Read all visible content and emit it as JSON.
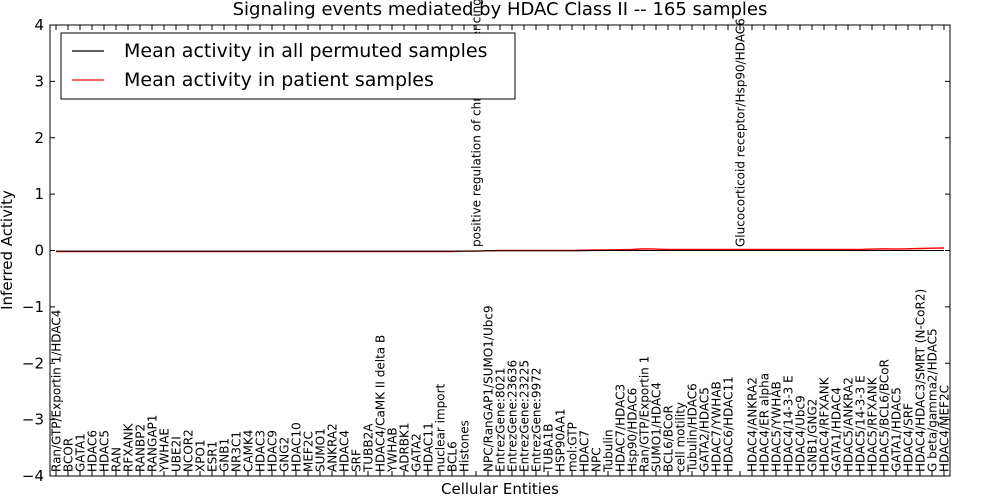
{
  "chart_data": {
    "type": "line",
    "title": "Signaling events mediated by HDAC Class II -- 165 samples",
    "xlabel": "Cellular Entities",
    "ylabel": "Inferred Activity",
    "ylim": [
      -4,
      4
    ],
    "yticks": [
      -4,
      -3,
      -2,
      -1,
      0,
      1,
      2,
      3,
      4
    ],
    "ytick_labels": [
      "−4",
      "−3",
      "−2",
      "−1",
      "0",
      "1",
      "2",
      "3",
      "4"
    ],
    "grid": false,
    "legend_position": "top-left",
    "categories": [
      "Ran/GTP/Exportin 1/HDAC4",
      "BCOR",
      "GATA1",
      "HDAC6",
      "HDAC5",
      "RAN",
      "RFXANK",
      "RANBP2",
      "RANGAP1",
      "YWHAE",
      "UBE2I",
      "NCOR2",
      "XPO1",
      "ESR1",
      "GNB1",
      "NR3C1",
      "CAMK4",
      "HDAC3",
      "HDAC9",
      "GNG2",
      "HDAC10",
      "MEF2C",
      "SUMO1",
      "ANKRA2",
      "HDAC4",
      "SRF",
      "TUBB2A",
      "HDAC4/CaMK II delta B",
      "YWHAB",
      "ADRBK1",
      "GATA2",
      "HDAC11",
      "nuclear import",
      "BCL6",
      "Histones",
      "positive regulation of chromatin silencing",
      "NPC/RanGAP1/SUMO1/Ubc9",
      "EntrezGene:8021",
      "EntrezGene:23636",
      "EntrezGene:23225",
      "EntrezGene:9972",
      "TUBA1B",
      "HSP90AA1",
      "mol:GTP",
      "HDAC7",
      "NPC",
      "Tubulin",
      "HDAC7/HDAC3",
      "Hsp90/HDAC6",
      "Ran/GTP/Exportin 1",
      "SUMO1/HDAC4",
      "BCL6/BCoR",
      "cell motility",
      "Tubulin/HDAC6",
      "GATA2/HDAC5",
      "HDAC7/YWHAB",
      "HDAC6/HDAC11",
      "Glucocorticoid receptor/Hsp90/HDAC6",
      "HDAC4/ANKRA2",
      "HDAC4/ER alpha",
      "HDAC5/YWHAB",
      "HDAC4/14-3-3 E",
      "HDAC4/Ubc9",
      "GNB1/GNG2",
      "HDAC4/RFXANK",
      "GATA1/HDAC4",
      "HDAC5/ANKRA2",
      "HDAC5/14-3-3 E",
      "HDAC5/RFXANK",
      "HDAC5/BCL6/BCoR",
      "GATA1/HDAC5",
      "HDAC4/SRF",
      "HDAC4/HDAC3/SMRT (N-CoR2)",
      "G beta/gamma2/HDAC5",
      "HDAC4/MEF2C"
    ],
    "series": [
      {
        "name": "Mean activity in all permuted samples",
        "color": "#000000",
        "values": [
          -0.01,
          -0.01,
          -0.01,
          -0.01,
          -0.01,
          -0.01,
          -0.01,
          -0.01,
          -0.01,
          -0.01,
          -0.01,
          -0.01,
          -0.01,
          -0.01,
          -0.01,
          -0.01,
          -0.01,
          -0.01,
          -0.01,
          -0.01,
          -0.01,
          -0.01,
          -0.01,
          -0.01,
          -0.01,
          -0.01,
          -0.01,
          -0.01,
          -0.01,
          -0.01,
          -0.01,
          -0.01,
          -0.01,
          -0.01,
          -0.01,
          -0.01,
          -0.005,
          -0.005,
          -0.005,
          -0.005,
          -0.005,
          -0.005,
          -0.005,
          -0.005,
          -0.005,
          0.0,
          0.0,
          0.0,
          0.0,
          0.0,
          0.0,
          0.0,
          0.0,
          0.0,
          0.0,
          0.0,
          0.0,
          0.0,
          0.0,
          0.0,
          0.0,
          0.0,
          0.0,
          0.0,
          0.0,
          0.0,
          0.0,
          0.0,
          0.0,
          0.0,
          0.0,
          0.0,
          0.0,
          0.0,
          0.0
        ]
      },
      {
        "name": "Mean activity in patient samples",
        "color": "#ff0000",
        "values": [
          -0.02,
          -0.02,
          -0.02,
          -0.02,
          -0.02,
          -0.02,
          -0.02,
          -0.02,
          -0.02,
          -0.02,
          -0.02,
          -0.02,
          -0.02,
          -0.02,
          -0.02,
          -0.02,
          -0.02,
          -0.02,
          -0.02,
          -0.02,
          -0.02,
          -0.02,
          -0.02,
          -0.02,
          -0.02,
          -0.02,
          -0.02,
          -0.02,
          -0.02,
          -0.02,
          -0.02,
          -0.02,
          -0.02,
          -0.02,
          -0.01,
          -0.01,
          -0.005,
          0.0,
          0.0,
          0.0,
          0.0,
          0.0,
          0.0,
          0.0,
          0.005,
          0.01,
          0.01,
          0.015,
          0.02,
          0.03,
          0.025,
          0.02,
          0.02,
          0.02,
          0.02,
          0.02,
          0.02,
          0.02,
          0.02,
          0.02,
          0.02,
          0.02,
          0.02,
          0.02,
          0.02,
          0.02,
          0.02,
          0.02,
          0.025,
          0.03,
          0.025,
          0.03,
          0.035,
          0.04,
          0.045
        ]
      }
    ]
  }
}
